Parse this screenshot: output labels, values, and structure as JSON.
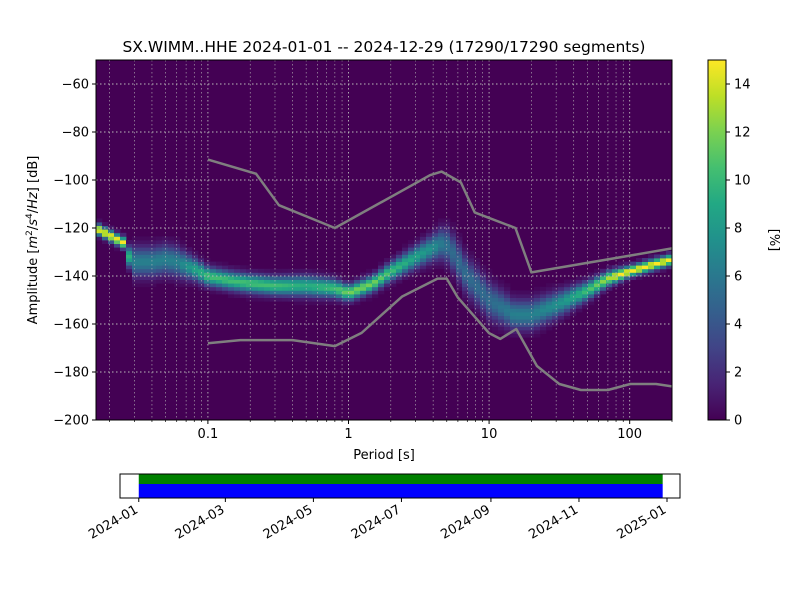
{
  "chart_data": [
    {
      "type": "heatmap",
      "title": "SX.WIMM..HHE   2024-01-01 -- 2024-12-29  (17290/17290 segments)",
      "xlabel": "Period [s]",
      "ylabel_parts": [
        "Amplitude [",
        "m",
        "2",
        "/",
        "s",
        "4",
        "/",
        "Hz",
        "] [dB]"
      ],
      "x_scale": "log",
      "xlim": [
        0.016,
        200
      ],
      "ylim": [
        -200,
        -50
      ],
      "x_ticks": [
        0.1,
        1,
        10,
        100
      ],
      "x_tick_labels": [
        "0.1",
        "1",
        "10",
        "100"
      ],
      "y_ticks": [
        -200,
        -180,
        -160,
        -140,
        -120,
        -100,
        -80,
        -60
      ],
      "y_tick_labels": [
        "−200",
        "−180",
        "−160",
        "−140",
        "−120",
        "−100",
        "−80",
        "−60"
      ],
      "grid": true,
      "colormap": "viridis",
      "colorbar": {
        "label": "[%]",
        "range": [
          0,
          15
        ],
        "ticks": [
          0,
          2,
          4,
          6,
          8,
          10,
          12,
          14
        ],
        "tick_labels": [
          "0",
          "2",
          "4",
          "6",
          "8",
          "10",
          "12",
          "14"
        ]
      },
      "mode_curve": {
        "period": [
          0.016,
          0.02,
          0.025,
          0.028,
          0.03,
          0.035,
          0.04,
          0.05,
          0.06,
          0.08,
          0.1,
          0.15,
          0.2,
          0.3,
          0.5,
          0.8,
          1.0,
          1.5,
          2.0,
          3.0,
          4.0,
          4.8,
          5.5,
          7.0,
          10,
          15,
          20,
          30,
          50,
          70,
          100,
          150,
          200
        ],
        "amplitude_db": [
          -120,
          -123,
          -126,
          -133,
          -134,
          -134,
          -134,
          -133,
          -134,
          -137,
          -140,
          -142,
          -143,
          -144,
          -144,
          -145,
          -147,
          -143,
          -138,
          -132,
          -128,
          -126,
          -130,
          -140,
          -150,
          -156,
          -156,
          -152,
          -146,
          -141,
          -138,
          -135,
          -133
        ],
        "spread_db": [
          1.5,
          1.5,
          1.5,
          3,
          4,
          4,
          4,
          4,
          4,
          3,
          2.5,
          2.5,
          2.5,
          2.5,
          2.8,
          2.5,
          2.2,
          2.2,
          2.5,
          3,
          3.5,
          4.5,
          5,
          5,
          5,
          4,
          4,
          3.5,
          2.5,
          2,
          1.5,
          1.5,
          1.5
        ]
      },
      "noise_models": [
        {
          "period": [
            0.1,
            0.17,
            0.4,
            0.8,
            1.24,
            2.4,
            4.3,
            5.0,
            6.0,
            10.0,
            12.0,
            15.6,
            21.9,
            31.6,
            45.0,
            70.0,
            101.0,
            154.0,
            200
          ],
          "amplitude_db": [
            -168,
            -166.7,
            -166.7,
            -169.2,
            -163.7,
            -148.6,
            -141.1,
            -141.1,
            -149,
            -163.8,
            -166.2,
            -162.1,
            -177.5,
            -185,
            -187.5,
            -187.5,
            -185,
            -185,
            -186
          ]
        },
        {
          "period": [
            0.1,
            0.22,
            0.32,
            0.8,
            3.8,
            4.6,
            6.3,
            7.9,
            15.4,
            20.0,
            200
          ],
          "amplitude_db": [
            -91.5,
            -97.4,
            -110.5,
            -120,
            -98,
            -96.5,
            -101,
            -113.5,
            -120,
            -138.5,
            -128.5
          ]
        }
      ]
    },
    {
      "type": "bar",
      "x_tick_labels": [
        "2024-01",
        "2024-03",
        "2024-05",
        "2024-07",
        "2024-09",
        "2024-11",
        "2025-01"
      ],
      "x_ticks": [
        "2024-01-01",
        "2024-03-01",
        "2024-05-01",
        "2024-07-01",
        "2024-09-01",
        "2024-11-01",
        "2025-01-01"
      ],
      "xlim": [
        "2023-12-19",
        "2025-01-10"
      ],
      "coverage": [
        {
          "start": "2024-01-01",
          "end": "2024-12-29",
          "color": "#008000"
        },
        {
          "start": "2024-01-01",
          "end": "2024-12-29",
          "color": "#0000ff"
        }
      ]
    }
  ]
}
